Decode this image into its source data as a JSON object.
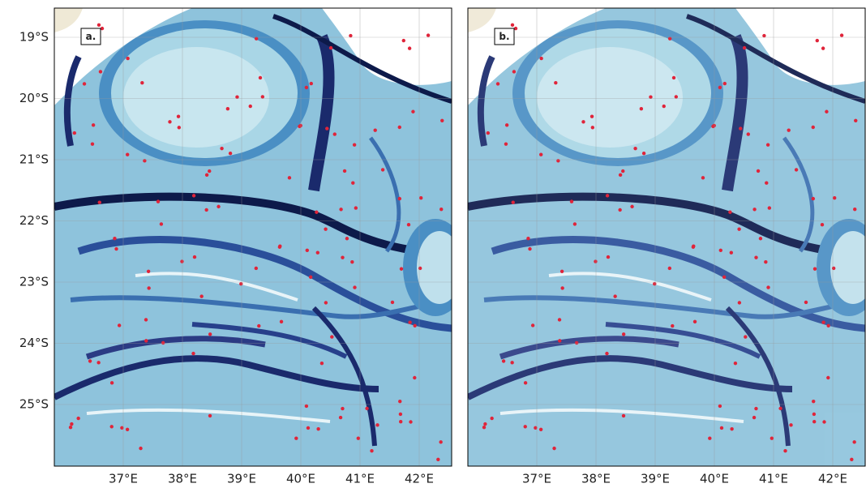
{
  "panels": [
    {
      "label": "a."
    },
    {
      "label": "b."
    }
  ],
  "lat_labels": [
    "19°S",
    "20°S",
    "21°S",
    "22°S",
    "23°S",
    "24°S",
    "25°S"
  ],
  "lon_labels": [
    "37°E",
    "38°E",
    "39°E",
    "40°E",
    "41°E",
    "42°E"
  ]
}
